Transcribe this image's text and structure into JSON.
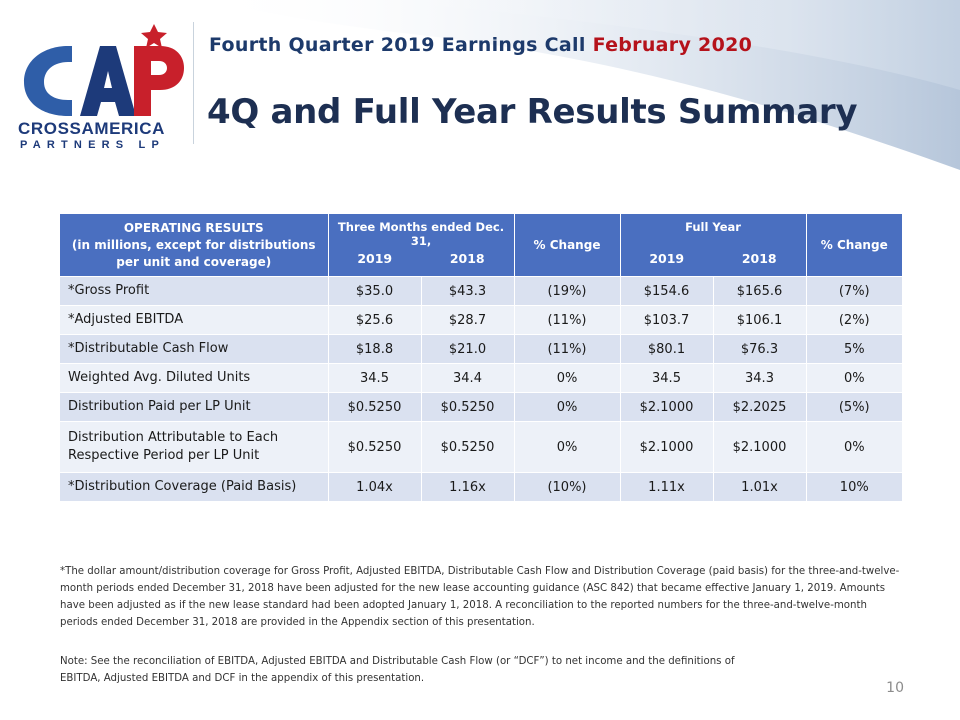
{
  "header": {
    "subtitle_main": "Fourth Quarter 2019 Earnings Call",
    "subtitle_date": "February 2020",
    "title": "4Q and Full Year Results Summary"
  },
  "logo": {
    "mark": "CAP",
    "line1": "CROSSAMERICA",
    "line2": "PARTNERS LP",
    "colors": {
      "navy": "#1d3a7a",
      "red": "#c8202b",
      "blue": "#2f5ea8"
    }
  },
  "table": {
    "header": {
      "operating_line1": "OPERATING RESULTS",
      "operating_line2": "(in millions, except for distributions",
      "operating_line3": "per unit and coverage)",
      "three_months": "Three Months ended Dec. 31,",
      "full_year": "Full Year",
      "year_a": "2019",
      "year_b": "2018",
      "pct_change": "% Change"
    },
    "rows": [
      {
        "label": "*Gross Profit",
        "q2019": "$35.0",
        "q2018": "$43.3",
        "qchg": "(19%)",
        "y2019": "$154.6",
        "y2018": "$165.6",
        "ychg": "(7%)"
      },
      {
        "label": "*Adjusted EBITDA",
        "q2019": "$25.6",
        "q2018": "$28.7",
        "qchg": "(11%)",
        "y2019": "$103.7",
        "y2018": "$106.1",
        "ychg": "(2%)"
      },
      {
        "label": "*Distributable Cash Flow",
        "q2019": "$18.8",
        "q2018": "$21.0",
        "qchg": "(11%)",
        "y2019": "$80.1",
        "y2018": "$76.3",
        "ychg": "5%"
      },
      {
        "label": "Weighted Avg. Diluted Units",
        "q2019": "34.5",
        "q2018": "34.4",
        "qchg": "0%",
        "y2019": "34.5",
        "y2018": "34.3",
        "ychg": "0%"
      },
      {
        "label": "Distribution Paid per LP Unit",
        "q2019": "$0.5250",
        "q2018": "$0.5250",
        "qchg": "0%",
        "y2019": "$2.1000",
        "y2018": "$2.2025",
        "ychg": "(5%)"
      },
      {
        "label": "Distribution Attributable to Each Respective Period per LP Unit",
        "q2019": "$0.5250",
        "q2018": "$0.5250",
        "qchg": "0%",
        "y2019": "$2.1000",
        "y2018": "$2.1000",
        "ychg": "0%"
      },
      {
        "label": "*Distribution Coverage (Paid Basis)",
        "q2019": "1.04x",
        "q2018": "1.16x",
        "qchg": "(10%)",
        "y2019": "1.11x",
        "y2018": "1.01x",
        "ychg": "10%"
      }
    ]
  },
  "footnote": "*The dollar amount/distribution coverage for Gross Profit, Adjusted EBITDA, Distributable Cash Flow and Distribution Coverage (paid basis) for the three-and-twelve-month periods ended December 31, 2018 have been adjusted for the new lease accounting guidance (ASC 842) that became effective January 1, 2019. Amounts have been adjusted as if the new lease standard had been adopted January 1, 2018. A reconciliation to the reported numbers for the three-and-twelve-month periods ended December 31, 2018 are provided in the Appendix section of this presentation.",
  "note": "Note: See the reconciliation of EBITDA, Adjusted EBITDA and Distributable Cash Flow (or “DCF”) to net income and the definitions of EBITDA, Adjusted EBITDA and DCF in the appendix of this presentation.",
  "page_number": "10"
}
